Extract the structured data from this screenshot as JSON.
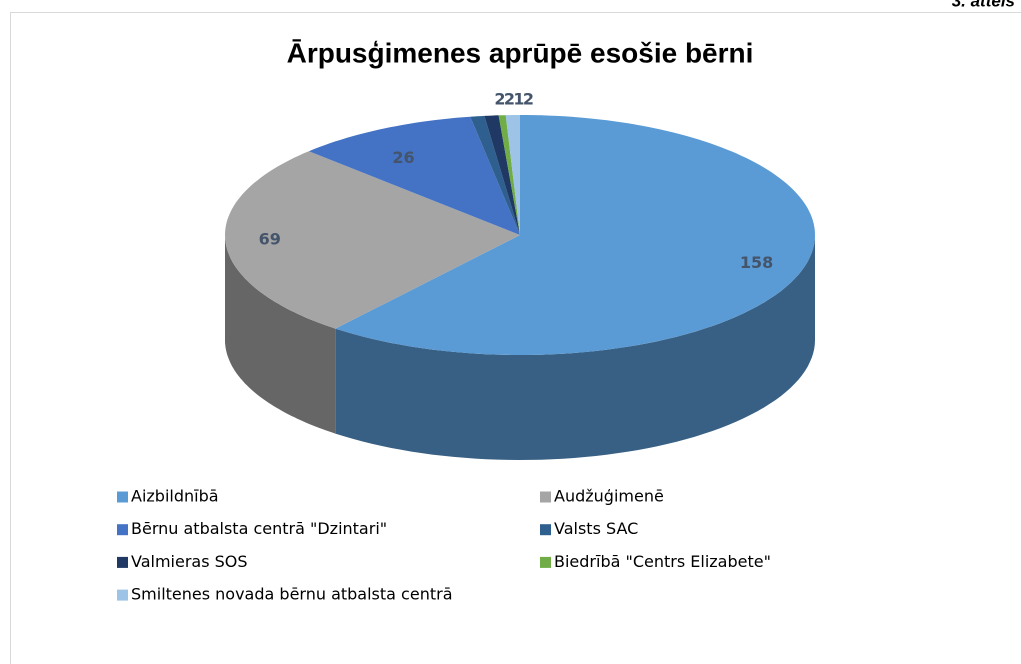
{
  "page_label": "3. attēls",
  "chart_data": {
    "type": "pie3d",
    "title": "Ārpusģimenes aprūpē esošie bērni",
    "categories": [
      "Aizbildnībā",
      "Audžuģimenē",
      "Bērnu atbalsta centrā \"Dzintari\"",
      "Valsts SAC",
      "Valmieras SOS",
      "Biedrībā \"Centrs Elizabete\"",
      "Smiltenes novada bērnu atbalsta centrā"
    ],
    "values": [
      158,
      69,
      26,
      2,
      2,
      1,
      2
    ],
    "colors": [
      "#5b9bd5",
      "#a5a5a5",
      "#4472c4",
      "#2e5f8f",
      "#1f3864",
      "#70ad47",
      "#9dc3e6"
    ],
    "legend": "bottom"
  }
}
